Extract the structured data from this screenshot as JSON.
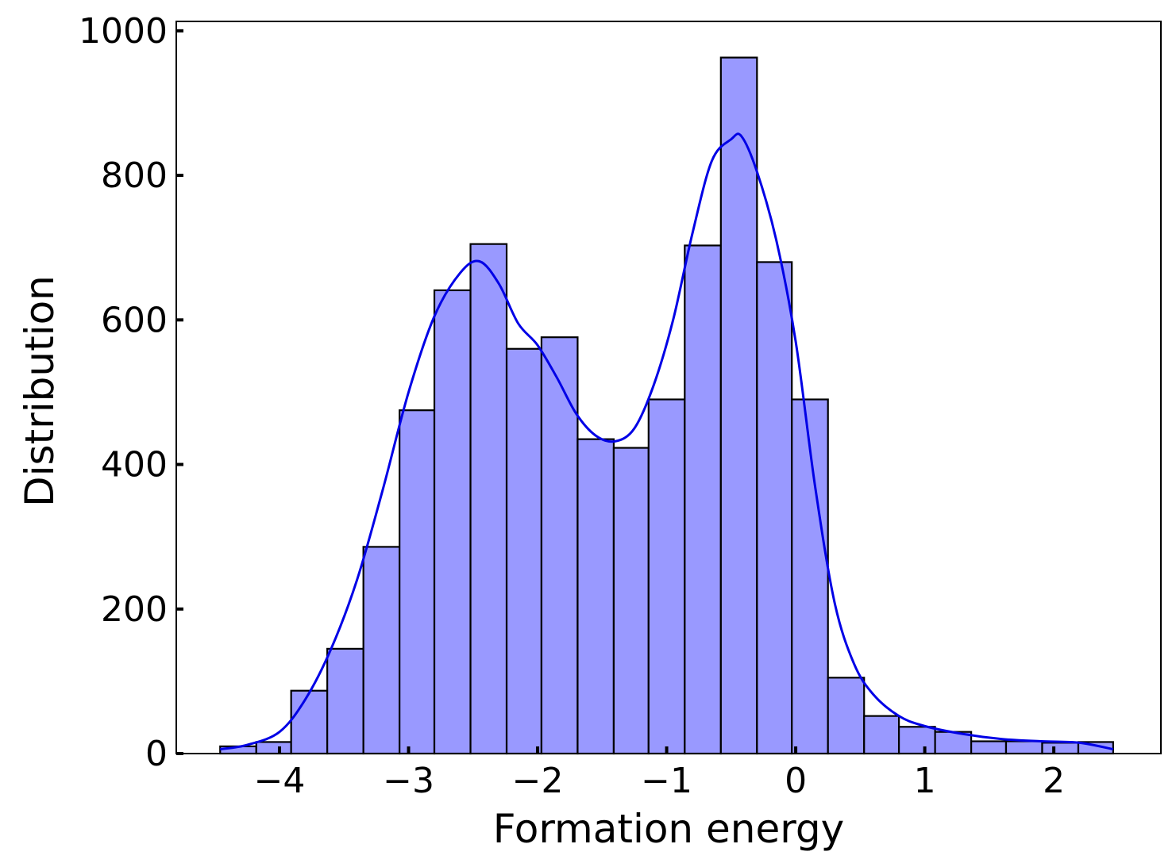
{
  "chart_data": {
    "type": "bar",
    "xlabel": "Formation energy",
    "ylabel": "Distribution",
    "xlim": [
      -4.8,
      2.83
    ],
    "ylim": [
      0,
      1013
    ],
    "grid": false,
    "xticks": [
      -4,
      -3,
      -2,
      -1,
      0,
      1,
      2
    ],
    "xtick_labels": [
      "−4",
      "−3",
      "−2",
      "−1",
      "0",
      "1",
      "2"
    ],
    "yticks": [
      0,
      200,
      400,
      600,
      800,
      1000
    ],
    "ytick_labels": [
      "0",
      "200",
      "400",
      "600",
      "800",
      "1000"
    ],
    "bins": [
      {
        "x0": -4.46,
        "x1": -4.18,
        "count": 10
      },
      {
        "x0": -4.18,
        "x1": -3.91,
        "count": 16
      },
      {
        "x0": -3.91,
        "x1": -3.63,
        "count": 87
      },
      {
        "x0": -3.63,
        "x1": -3.35,
        "count": 145
      },
      {
        "x0": -3.35,
        "x1": -3.07,
        "count": 286
      },
      {
        "x0": -3.07,
        "x1": -2.8,
        "count": 475
      },
      {
        "x0": -2.8,
        "x1": -2.52,
        "count": 641
      },
      {
        "x0": -2.52,
        "x1": -2.24,
        "count": 705
      },
      {
        "x0": -2.24,
        "x1": -1.97,
        "count": 560
      },
      {
        "x0": -1.97,
        "x1": -1.69,
        "count": 576
      },
      {
        "x0": -1.69,
        "x1": -1.41,
        "count": 435
      },
      {
        "x0": -1.41,
        "x1": -1.14,
        "count": 423
      },
      {
        "x0": -1.14,
        "x1": -0.86,
        "count": 490
      },
      {
        "x0": -0.86,
        "x1": -0.58,
        "count": 703
      },
      {
        "x0": -0.58,
        "x1": -0.3,
        "count": 963
      },
      {
        "x0": -0.3,
        "x1": -0.03,
        "count": 680
      },
      {
        "x0": -0.03,
        "x1": 0.25,
        "count": 490
      },
      {
        "x0": 0.25,
        "x1": 0.53,
        "count": 105
      },
      {
        "x0": 0.53,
        "x1": 0.8,
        "count": 52
      },
      {
        "x0": 0.8,
        "x1": 1.08,
        "count": 37
      },
      {
        "x0": 1.08,
        "x1": 1.36,
        "count": 30
      },
      {
        "x0": 1.36,
        "x1": 1.63,
        "count": 17
      },
      {
        "x0": 1.63,
        "x1": 1.91,
        "count": 17
      },
      {
        "x0": 1.91,
        "x1": 2.19,
        "count": 15
      },
      {
        "x0": 2.19,
        "x1": 2.46,
        "count": 16
      }
    ],
    "kde": {
      "x": [
        -4.46,
        -4.25,
        -4.0,
        -3.8,
        -3.6,
        -3.4,
        -3.2,
        -3.0,
        -2.8,
        -2.6,
        -2.45,
        -2.3,
        -2.15,
        -2.0,
        -1.85,
        -1.7,
        -1.55,
        -1.4,
        -1.25,
        -1.1,
        -0.95,
        -0.8,
        -0.65,
        -0.5,
        -0.42,
        -0.3,
        -0.15,
        0.0,
        0.15,
        0.3,
        0.45,
        0.6,
        0.8,
        1.0,
        1.3,
        1.6,
        1.9,
        2.2,
        2.46
      ],
      "y": [
        6,
        12,
        30,
        75,
        145,
        240,
        365,
        500,
        605,
        665,
        681,
        650,
        595,
        565,
        520,
        470,
        440,
        432,
        450,
        510,
        600,
        720,
        820,
        850,
        854,
        805,
        710,
        570,
        370,
        210,
        125,
        82,
        52,
        38,
        27,
        20,
        17,
        15,
        6
      ]
    },
    "bar_fill": "#9999ff",
    "bar_edge": "#000000",
    "kde_color": "#0000e6"
  }
}
